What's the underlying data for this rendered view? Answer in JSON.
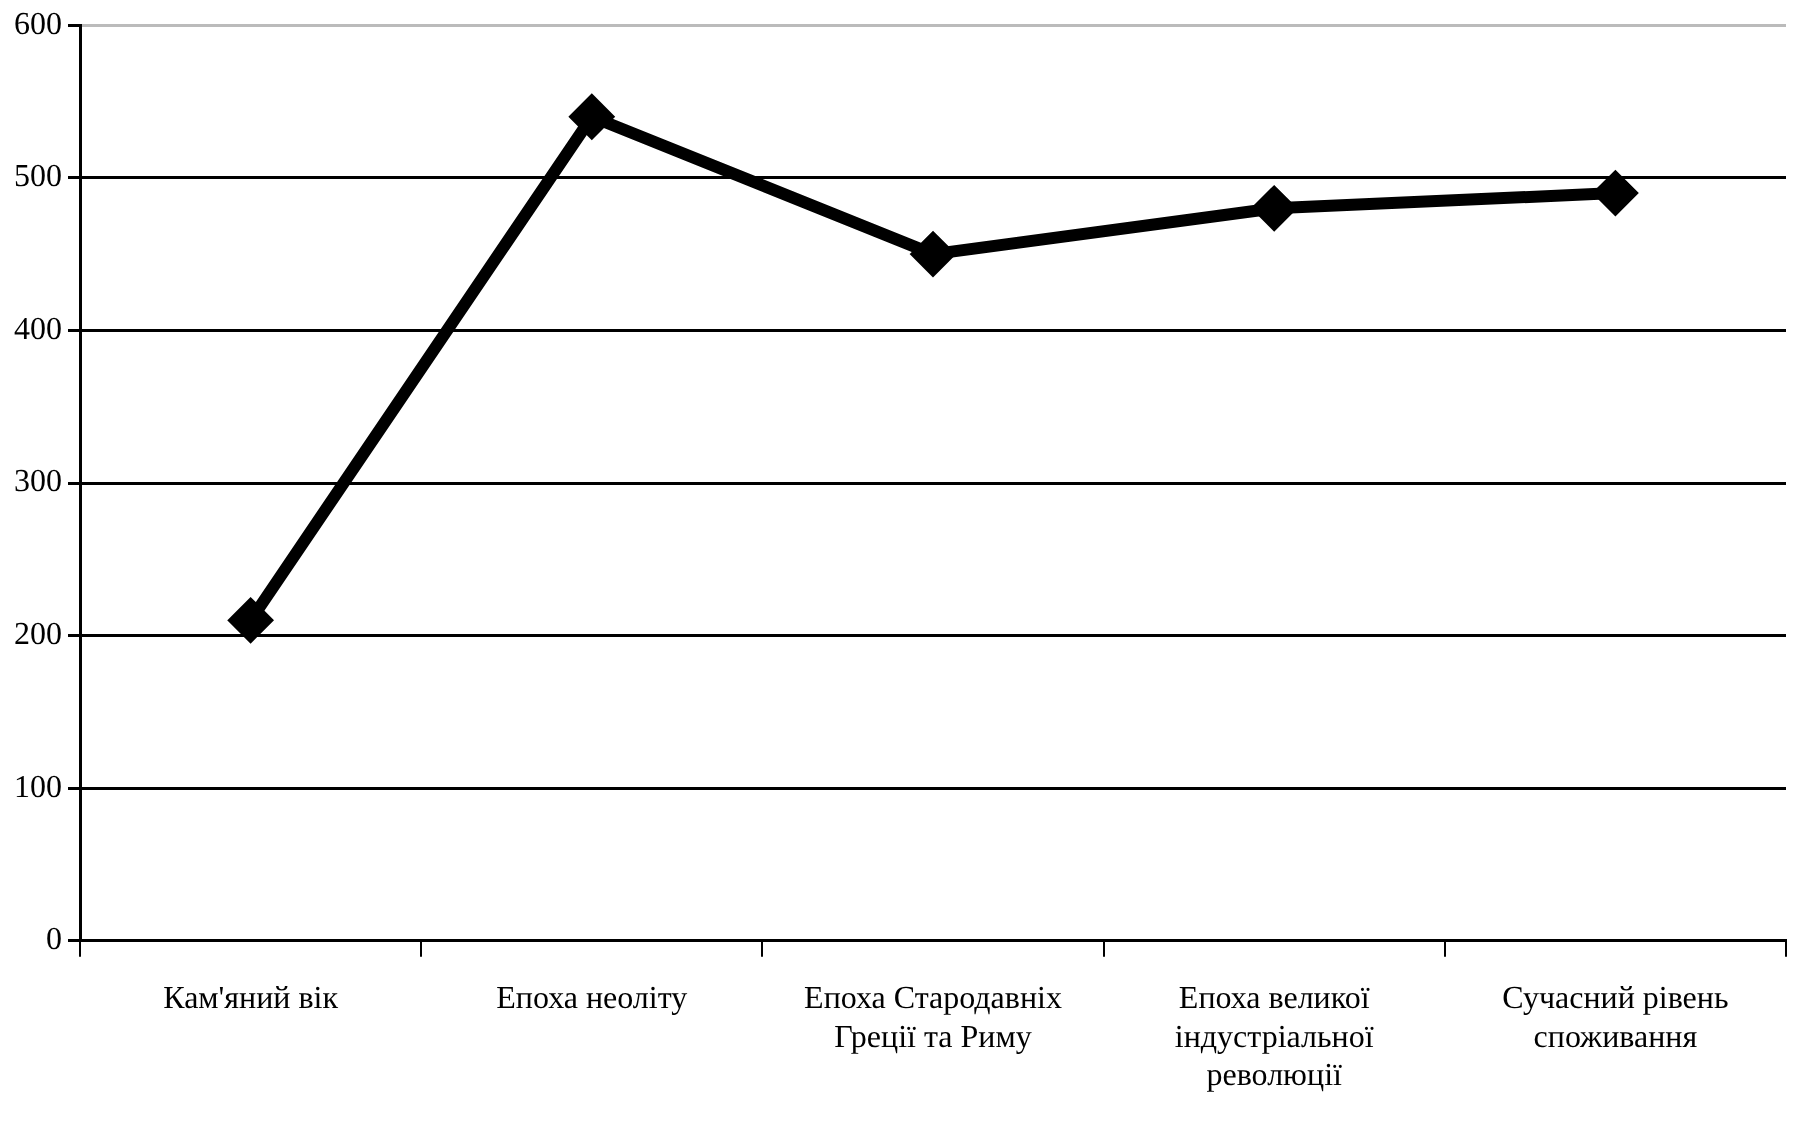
{
  "chart_data": {
    "type": "line",
    "categories": [
      "Кам'яний вік",
      "Епоха неоліту",
      "Епоха Стародавніх Греції та Риму",
      "Епоха великої індустріальної революції",
      "Сучасний рівень споживання"
    ],
    "series": [
      {
        "color": "#000000",
        "values": [
          210,
          540,
          450,
          480,
          490
        ]
      }
    ],
    "ylim": [
      0,
      600
    ],
    "yticks": [
      0,
      100,
      200,
      300,
      400,
      500,
      600
    ],
    "grid": "y",
    "legend": false,
    "marker": "diamond",
    "line_style": "solid"
  }
}
